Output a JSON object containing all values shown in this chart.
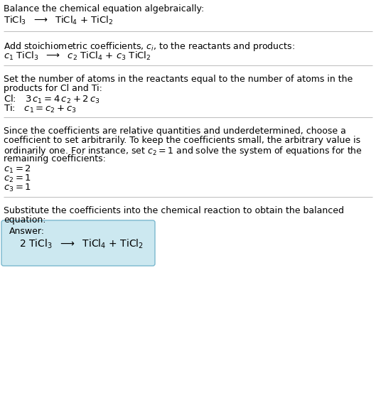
{
  "title": "Balance the chemical equation algebraically:",
  "eq1": "TiCl$_3$  $\\longrightarrow$  TiCl$_4$ + TiCl$_2$",
  "section2_header": "Add stoichiometric coefficients, $c_i$, to the reactants and products:",
  "eq2": "$c_1$ TiCl$_3$  $\\longrightarrow$  $c_2$ TiCl$_4$ + $c_3$ TiCl$_2$",
  "section3_header1": "Set the number of atoms in the reactants equal to the number of atoms in the",
  "section3_header2": "products for Cl and Ti:",
  "cl_eq": "Cl:   $3\\,c_1 = 4\\,c_2 + 2\\,c_3$",
  "ti_eq": "Ti:   $c_1 = c_2 + c_3$",
  "section4_header1": "Since the coefficients are relative quantities and underdetermined, choose a",
  "section4_header2": "coefficient to set arbitrarily. To keep the coefficients small, the arbitrary value is",
  "section4_header3": "ordinarily one. For instance, set $c_2 = 1$ and solve the system of equations for the",
  "section4_header4": "remaining coefficients:",
  "c1_eq": "$c_1 = 2$",
  "c2_eq": "$c_2 = 1$",
  "c3_eq": "$c_3 = 1$",
  "section5_header1": "Substitute the coefficients into the chemical reaction to obtain the balanced",
  "section5_header2": "equation:",
  "answer_label": "Answer:",
  "answer_eq": "2 TiCl$_3$  $\\longrightarrow$  TiCl$_4$ + TiCl$_2$",
  "bg_color": "#ffffff",
  "text_color": "#000000",
  "line_color": "#bbbbbb",
  "answer_box_facecolor": "#cce8f0",
  "answer_box_edgecolor": "#7ab8ce"
}
